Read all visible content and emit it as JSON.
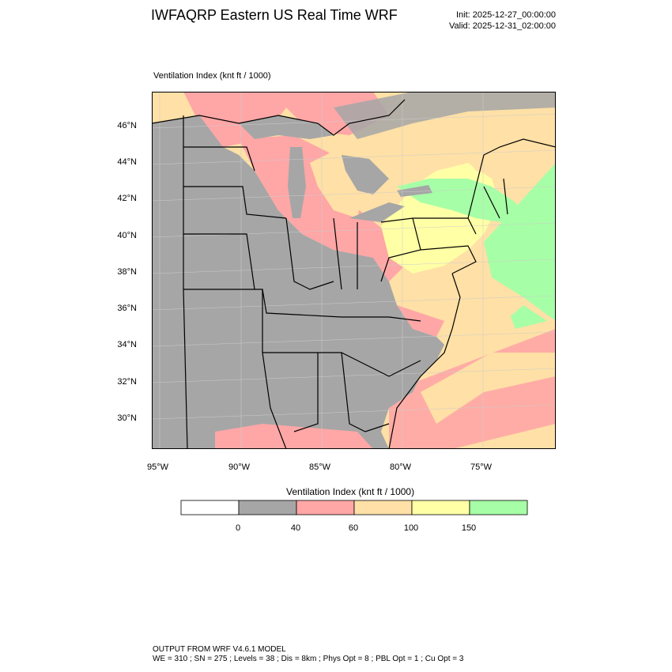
{
  "header": {
    "title": "IWFAQRP Eastern US Real Time WRF",
    "init": "Init: 2025-12-27_00:00:00",
    "valid": "Valid: 2025-12-31_02:00:00"
  },
  "map": {
    "subtitle": "Ventilation Index   (knt ft / 1000)",
    "lat_labels": [
      "46°N",
      "44°N",
      "42°N",
      "40°N",
      "38°N",
      "36°N",
      "34°N",
      "32°N",
      "30°N"
    ],
    "lon_labels": [
      "95°W",
      "90°W",
      "85°W",
      "80°W",
      "75°W"
    ]
  },
  "colorbar": {
    "title": "Ventilation Index  (knt ft / 1000)",
    "ticks": [
      "0",
      "40",
      "60",
      "100",
      "150"
    ],
    "colors": [
      "#ffffff",
      "#a6a6a6",
      "#ffa6a6",
      "#ffe0a6",
      "#ffffa6",
      "#a6ffa6"
    ]
  },
  "palette": {
    "gray": "#a6a6a6",
    "pink": "#ffa6a6",
    "tan": "#ffe0a6",
    "yellow": "#ffffa6",
    "green": "#a6ffa6",
    "water": "#a6a6a6"
  },
  "footer": {
    "line1": "OUTPUT FROM WRF V4.6.1 MODEL",
    "line2": "WE = 310 ; SN = 275 ; Levels = 38 ; Dis = 8km ; Phys Opt = 8 ; PBL Opt = 1 ; Cu Opt = 3"
  }
}
